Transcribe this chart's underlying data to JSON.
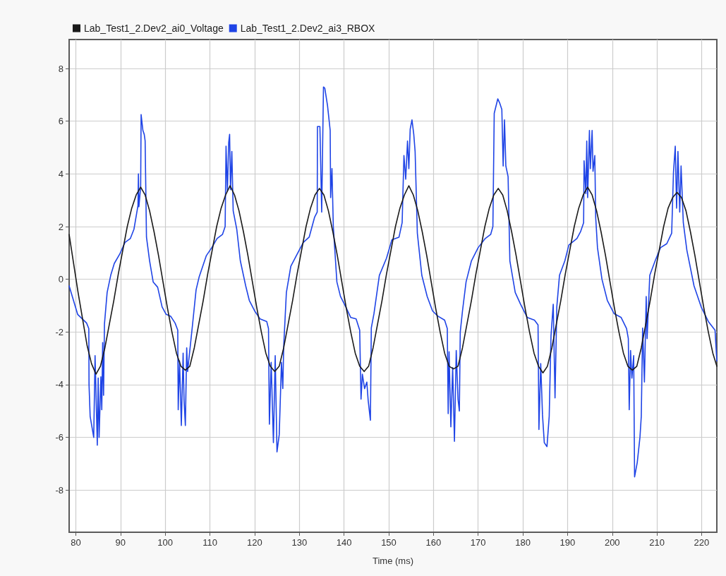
{
  "chart_data": {
    "type": "line",
    "xlabel": "Time (ms)",
    "xlim": [
      78.5,
      223.4
    ],
    "xticks": [
      80,
      90,
      100,
      110,
      120,
      130,
      140,
      150,
      160,
      170,
      180,
      190,
      200,
      210,
      220
    ],
    "ylim": [
      -9.6,
      9.1
    ],
    "yticks": [
      -8,
      -6,
      -4,
      -2,
      0,
      2,
      4,
      6,
      8
    ],
    "grid": true,
    "legend": "top left",
    "marker": "none",
    "line_style": "solid",
    "series": [
      {
        "name": "Lab_Test1_2.Dev2_ai0_Voltage",
        "color": "#1a1a1a",
        "x": [
          78.5,
          79.5,
          80.5,
          81.5,
          82.5,
          83.5,
          84.5,
          85.5,
          86.5,
          87.5,
          88.5,
          89.5,
          90.5,
          91.5,
          92.5,
          93.5,
          94.5,
          95.5,
          96.5,
          97.5,
          98.5,
          99.5,
          100.5,
          101.5,
          102.5,
          103.5,
          104.5,
          105.5,
          106.5,
          107.5,
          108.5,
          109.5,
          110.5,
          111.5,
          112.5,
          113.5,
          114.5,
          115.5,
          116.5,
          117.5,
          118.5,
          119.5,
          120.5,
          121.5,
          122.5,
          123.5,
          124.5,
          125.5,
          126.5,
          127.5,
          128.5,
          129.5,
          130.5,
          131.5,
          132.5,
          133.5,
          134.5,
          135.5,
          136.5,
          137.5,
          138.5,
          139.5,
          140.5,
          141.5,
          142.5,
          143.5,
          144.5,
          145.5,
          146.5,
          147.5,
          148.5,
          149.5,
          150.5,
          151.5,
          152.5,
          153.5,
          154.5,
          155.5,
          156.5,
          157.5,
          158.5,
          159.5,
          160.5,
          161.5,
          162.5,
          163.5,
          164.5,
          165.5,
          166.5,
          167.5,
          168.5,
          169.5,
          170.5,
          171.5,
          172.5,
          173.5,
          174.5,
          175.5,
          176.5,
          177.5,
          178.5,
          179.5,
          180.5,
          181.5,
          182.5,
          183.5,
          184.5,
          185.5,
          186.5,
          187.5,
          188.5,
          189.5,
          190.5,
          191.5,
          192.5,
          193.5,
          194.5,
          195.5,
          196.5,
          197.5,
          198.5,
          199.5,
          200.5,
          201.5,
          202.5,
          203.5,
          204.5,
          205.5,
          206.5,
          207.5,
          208.5,
          209.5,
          210.5,
          211.5,
          212.5,
          213.5,
          214.5,
          215.5,
          216.5,
          217.5,
          218.5,
          219.5,
          220.5,
          221.5,
          222.5,
          223.4
        ],
        "values": [
          1.7,
          0.6,
          -0.5,
          -1.5,
          -2.5,
          -3.2,
          -3.6,
          -3.3,
          -2.6,
          -1.7,
          -0.8,
          0.2,
          1.1,
          2.0,
          2.7,
          3.2,
          3.5,
          3.2,
          2.6,
          1.8,
          0.9,
          -0.1,
          -1.1,
          -2.0,
          -2.8,
          -3.3,
          -3.45,
          -3.3,
          -2.6,
          -1.7,
          -0.8,
          0.2,
          1.1,
          2.0,
          2.7,
          3.2,
          3.55,
          3.2,
          2.6,
          1.8,
          0.9,
          -0.1,
          -1.1,
          -2.0,
          -2.8,
          -3.3,
          -3.5,
          -3.3,
          -2.6,
          -1.7,
          -0.8,
          0.2,
          1.1,
          2.0,
          2.7,
          3.2,
          3.45,
          3.2,
          2.6,
          1.8,
          0.9,
          -0.1,
          -1.1,
          -2.0,
          -2.8,
          -3.3,
          -3.5,
          -3.3,
          -2.6,
          -1.7,
          -0.8,
          0.2,
          1.1,
          2.0,
          2.7,
          3.2,
          3.55,
          3.2,
          2.6,
          1.8,
          0.9,
          -0.1,
          -1.1,
          -2.0,
          -2.8,
          -3.3,
          -3.4,
          -3.3,
          -2.6,
          -1.7,
          -0.8,
          0.2,
          1.1,
          2.0,
          2.7,
          3.2,
          3.45,
          3.2,
          2.6,
          1.8,
          0.9,
          -0.1,
          -1.1,
          -2.0,
          -2.8,
          -3.3,
          -3.55,
          -3.3,
          -2.6,
          -1.7,
          -0.8,
          0.2,
          1.1,
          2.0,
          2.7,
          3.2,
          3.5,
          3.2,
          2.6,
          1.8,
          0.9,
          -0.1,
          -1.1,
          -2.0,
          -2.8,
          -3.3,
          -3.45,
          -3.3,
          -2.6,
          -1.7,
          -0.8,
          0.2,
          1.1,
          2.0,
          2.7,
          3.1,
          3.3,
          3.1,
          2.6,
          1.8,
          0.9,
          -0.1,
          -1.1,
          -2.0,
          -2.8,
          -3.3
        ]
      },
      {
        "name": "Lab_Test1_2.Dev2_ai3_RBOX",
        "color": "#1f44e6",
        "x": [
          78.5,
          80.4,
          82.4,
          82.9,
          82.95,
          83.2,
          84.0,
          84.3,
          84.8,
          85.0,
          85.2,
          85.6,
          85.8,
          86.0,
          86.2,
          86.4,
          87.0,
          87.8,
          88.6,
          89.8,
          91.0,
          92.2,
          93.0,
          93.6,
          93.9,
          94.0,
          94.1,
          94.5,
          94.6,
          95.0,
          95.3,
          95.5,
          95.8,
          96.5,
          97.3,
          98.3,
          99.3,
          100.2,
          101.2,
          102.2,
          102.8,
          102.9,
          103.2,
          103.6,
          104.0,
          104.2,
          104.5,
          104.8,
          105.0,
          106.1,
          106.9,
          107.6,
          109.2,
          110.4,
          111.6,
          112.8,
          113.4,
          113.6,
          113.9,
          114.2,
          114.4,
          114.6,
          114.9,
          115.2,
          116.0,
          116.8,
          118.0,
          118.8,
          120.0,
          121.2,
          122.7,
          123.1,
          123.3,
          123.7,
          124.2,
          124.6,
          125.0,
          125.5,
          126.0,
          126.3,
          126.5,
          127.1,
          128.1,
          129.5,
          130.9,
          132.2,
          133.4,
          134.0,
          134.05,
          134.6,
          135.0,
          135.4,
          135.7,
          136.3,
          136.9,
          137.0,
          137.3,
          137.6,
          138.4,
          139.2,
          140.4,
          141.5,
          142.7,
          143.5,
          143.8,
          144.1,
          144.6,
          145.1,
          145.4,
          145.9,
          146.1,
          146.7,
          147.9,
          149.5,
          150.7,
          152.3,
          153.0,
          153.4,
          153.8,
          154.2,
          154.5,
          154.8,
          155.2,
          155.6,
          155.9,
          156.4,
          157.4,
          158.6,
          159.8,
          161.0,
          162.5,
          163.1,
          163.3,
          163.5,
          163.9,
          164.3,
          164.7,
          165.1,
          165.5,
          165.8,
          166.0,
          166.5,
          167.3,
          168.5,
          170.0,
          171.6,
          172.8,
          173.3,
          173.6,
          174.4,
          174.8,
          175.3,
          175.6,
          175.9,
          176.2,
          176.7,
          177.1,
          178.3,
          179.5,
          181.0,
          182.6,
          183.4,
          183.6,
          184.0,
          184.4,
          184.8,
          185.4,
          185.9,
          186.3,
          186.8,
          187.2,
          187.6,
          188.2,
          189.4,
          190.3,
          192.1,
          192.9,
          193.6,
          193.7,
          194.1,
          194.3,
          194.5,
          194.9,
          195.1,
          195.5,
          195.7,
          196.1,
          196.3,
          196.7,
          197.7,
          198.9,
          200.4,
          202.0,
          203.2,
          203.6,
          203.8,
          204.1,
          204.4,
          204.8,
          205.0,
          205.6,
          206.2,
          206.5,
          206.8,
          207.2,
          207.6,
          207.8,
          208.4,
          209.6,
          210.8,
          212.2,
          213.3,
          213.7,
          214.1,
          214.4,
          214.7,
          215.1,
          215.4,
          215.9,
          216.7,
          218.3,
          219.9,
          221.5,
          223.0,
          223.4
        ],
        "values": [
          -0.25,
          -1.33,
          -1.66,
          -1.87,
          -4.0,
          -5.2,
          -6.0,
          -2.9,
          -6.3,
          -3.75,
          -6.0,
          -3.7,
          -4.95,
          -2.4,
          -4.4,
          -1.7,
          -0.5,
          0.15,
          0.6,
          0.95,
          1.4,
          1.55,
          1.9,
          2.5,
          2.8,
          4.0,
          2.75,
          3.5,
          6.25,
          5.65,
          5.5,
          5.25,
          1.6,
          0.7,
          -0.1,
          -0.3,
          -1.05,
          -1.33,
          -1.4,
          -1.66,
          -1.93,
          -4.95,
          -3.1,
          -5.55,
          -2.8,
          -4.55,
          -5.55,
          -2.6,
          -3.5,
          -1.73,
          -0.4,
          0.1,
          0.9,
          1.2,
          1.55,
          1.7,
          2.0,
          5.05,
          3.35,
          5.2,
          5.5,
          3.4,
          4.85,
          2.6,
          1.9,
          0.7,
          -0.25,
          -0.8,
          -1.2,
          -1.5,
          -1.6,
          -1.87,
          -5.5,
          -3.15,
          -6.2,
          -2.9,
          -6.55,
          -5.9,
          -3.15,
          -4.15,
          -2.55,
          -0.5,
          0.5,
          0.95,
          1.4,
          1.6,
          2.35,
          2.55,
          5.8,
          5.8,
          2.55,
          7.3,
          7.25,
          6.6,
          5.65,
          3.1,
          4.2,
          2.0,
          -0.1,
          -0.65,
          -1.05,
          -1.45,
          -1.5,
          -1.93,
          -4.55,
          -3.6,
          -4.15,
          -3.9,
          -4.6,
          -5.35,
          -1.85,
          -1.3,
          0.15,
          0.8,
          1.5,
          1.6,
          2.15,
          4.7,
          3.8,
          5.25,
          4.2,
          5.7,
          6.05,
          5.5,
          4.85,
          1.75,
          0.15,
          -0.65,
          -1.2,
          -1.4,
          -1.55,
          -1.87,
          -5.1,
          -2.75,
          -5.6,
          -3.35,
          -6.15,
          -2.7,
          -4.55,
          -5.0,
          -2.0,
          -1.2,
          -0.1,
          0.7,
          1.2,
          1.55,
          1.7,
          2.0,
          6.3,
          6.85,
          6.7,
          6.45,
          4.3,
          6.05,
          4.3,
          3.9,
          0.7,
          -0.5,
          -0.95,
          -1.45,
          -1.55,
          -1.73,
          -5.7,
          -3.2,
          -5.15,
          -6.2,
          -6.35,
          -5.2,
          -2.15,
          -0.95,
          -4.5,
          -1.05,
          0.15,
          0.7,
          1.3,
          1.55,
          1.8,
          2.15,
          4.5,
          3.25,
          5.25,
          3.1,
          5.65,
          4.2,
          5.65,
          4.1,
          4.7,
          2.35,
          1.2,
          0.0,
          -0.8,
          -1.3,
          -1.45,
          -1.87,
          -2.25,
          -4.95,
          -2.7,
          -3.75,
          -2.9,
          -7.5,
          -6.95,
          -6.0,
          -5.2,
          -1.85,
          -3.9,
          -0.65,
          -2.25,
          0.15,
          0.7,
          1.2,
          1.35,
          1.75,
          4.05,
          5.05,
          2.7,
          4.85,
          2.55,
          4.3,
          2.15,
          1.1,
          -0.25,
          -1.05,
          -1.6,
          -1.93,
          -3.1
        ]
      }
    ]
  }
}
